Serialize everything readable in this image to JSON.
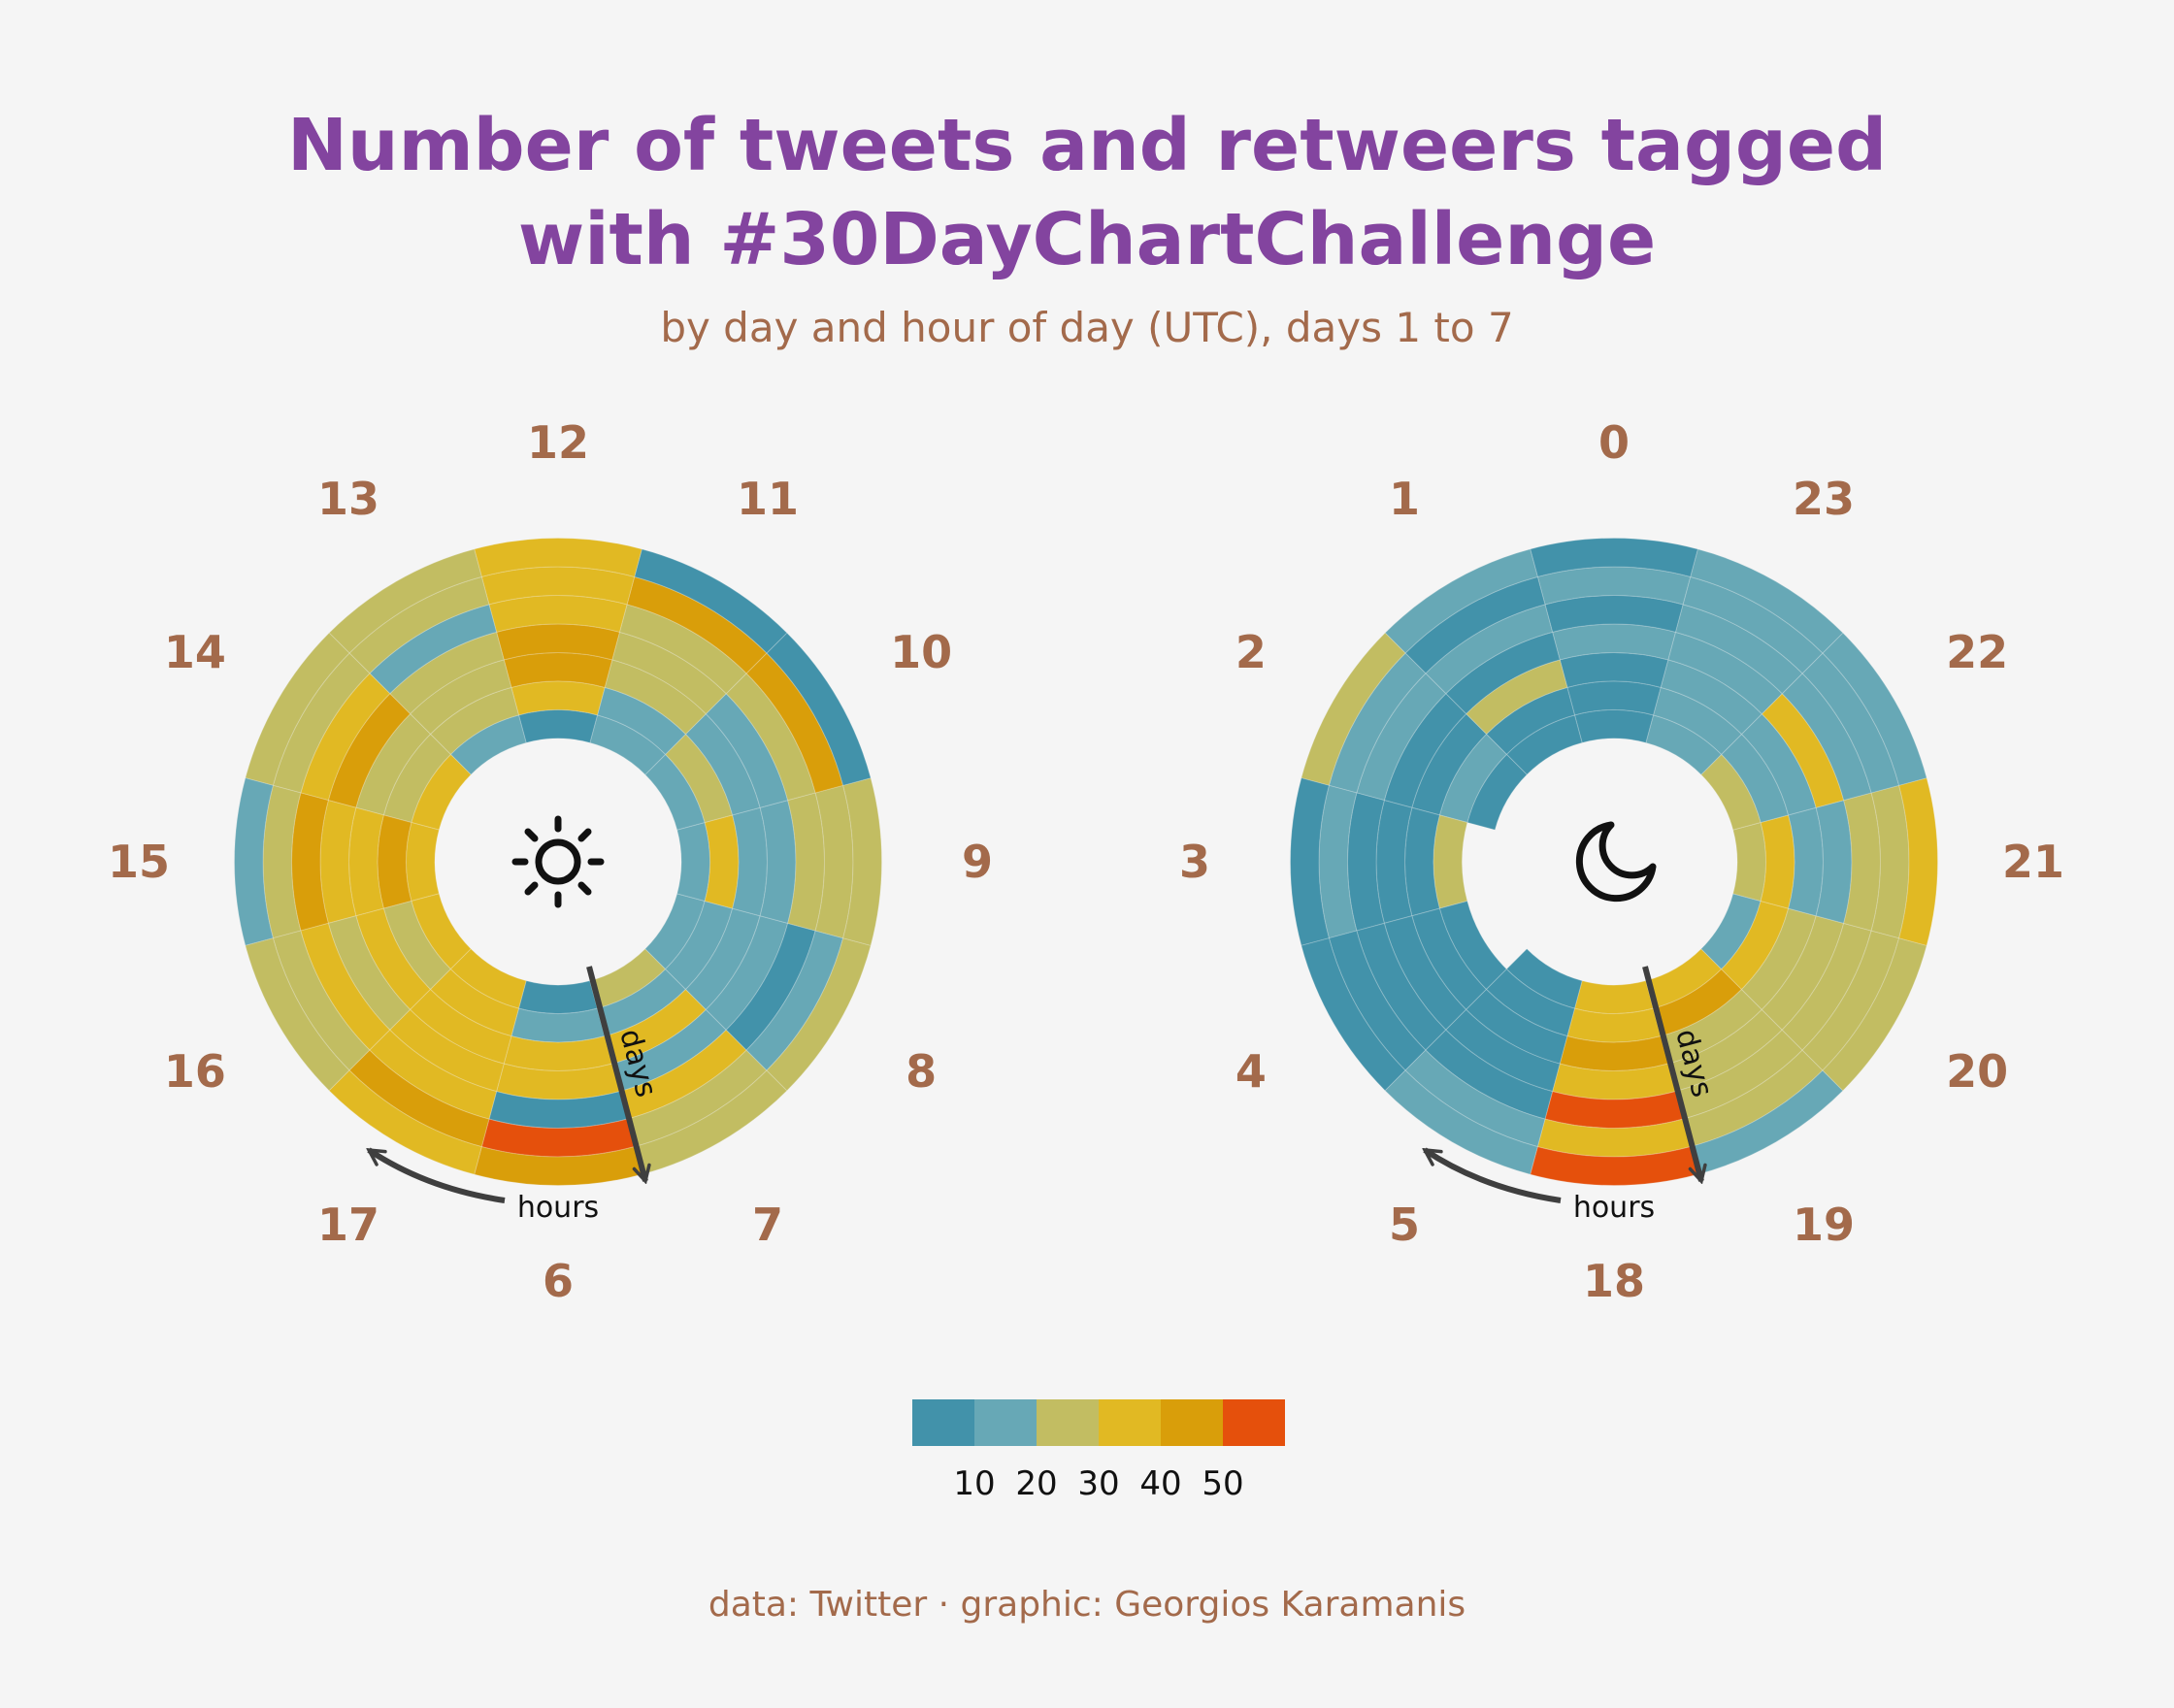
{
  "title_line1": "Number of tweets and retweers tagged",
  "title_line2": "with #30DayChartChallenge",
  "subtitle": "by day and hour of day (UTC), days 1 to 7",
  "caption": "data: Twitter · graphic: Georgios Karamanis",
  "annotations": {
    "hours": "hours",
    "days": "days"
  },
  "icons": {
    "day_panel": "sun-icon",
    "night_panel": "moon-icon"
  },
  "legend": {
    "labels": [
      "10",
      "20",
      "30",
      "40",
      "50"
    ],
    "colors": [
      "#4292aa",
      "#67a8b6",
      "#c2bd62",
      "#e1b923",
      "#d99e0a",
      "#e5500c"
    ],
    "breaks": [
      10,
      20,
      30,
      40,
      50
    ]
  },
  "chart_data": [
    {
      "type": "heatmap",
      "name": "day",
      "hours": [
        6,
        7,
        8,
        9,
        10,
        11,
        12,
        13,
        14,
        15,
        16,
        17
      ],
      "days": [
        1,
        2,
        3,
        4,
        5,
        6,
        7
      ],
      "values": [
        [
          8,
          18,
          35,
          38,
          5,
          55,
          42
        ],
        [
          28,
          14,
          38,
          18,
          32,
          22,
          26
        ],
        [
          18,
          12,
          18,
          16,
          8,
          15,
          25
        ],
        [
          18,
          35,
          12,
          18,
          24,
          25,
          25
        ],
        [
          18,
          25,
          18,
          12,
          25,
          42,
          8
        ],
        [
          15,
          12,
          28,
          22,
          24,
          42,
          8
        ],
        [
          8,
          35,
          45,
          40,
          32,
          34,
          36
        ],
        [
          15,
          25,
          28,
          26,
          15,
          26,
          24
        ],
        [
          36,
          25,
          26,
          42,
          36,
          26,
          26
        ],
        [
          36,
          42,
          36,
          36,
          42,
          22,
          15
        ],
        [
          35,
          25,
          35,
          26,
          34,
          26,
          26
        ],
        [
          34,
          38,
          35,
          34,
          38,
          42,
          36
        ]
      ]
    },
    {
      "type": "heatmap",
      "name": "night",
      "hours": [
        18,
        19,
        20,
        21,
        22,
        23,
        0,
        1,
        2,
        3,
        4,
        5
      ],
      "days": [
        1,
        2,
        3,
        4,
        5,
        6,
        7
      ],
      "values": [
        [
          36,
          36,
          42,
          36,
          55,
          36,
          55
        ],
        [
          34,
          42,
          25,
          25,
          25,
          25,
          18
        ],
        [
          18,
          38,
          25,
          25,
          25,
          25,
          25
        ],
        [
          25,
          38,
          18,
          18,
          25,
          25,
          38
        ],
        [
          25,
          18,
          18,
          36,
          18,
          15,
          18
        ],
        [
          15,
          15,
          15,
          15,
          15,
          15,
          15
        ],
        [
          8,
          8,
          8,
          12,
          8,
          12,
          8
        ],
        [
          8,
          8,
          25,
          8,
          12,
          8,
          15
        ],
        [
          8,
          15,
          8,
          8,
          15,
          15,
          26
        ],
        [
          0,
          25,
          8,
          8,
          8,
          15,
          8
        ],
        [
          0,
          8,
          8,
          8,
          8,
          8,
          8
        ],
        [
          8,
          8,
          8,
          8,
          8,
          18,
          18
        ]
      ]
    }
  ]
}
